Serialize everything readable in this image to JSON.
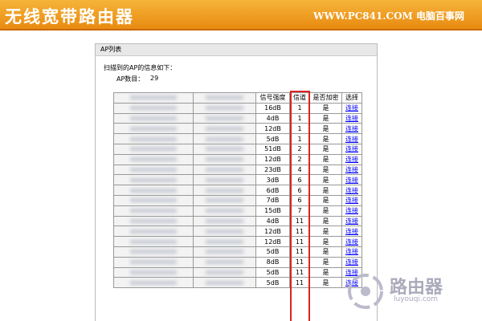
{
  "header": {
    "title": "无线宽带路由器",
    "site": "WWW.PC841.COM 电脑百事网"
  },
  "panel": {
    "title": "AP列表",
    "intro": "扫描到的AP的信息如下：",
    "count_label": "AP数目：",
    "count_value": "29"
  },
  "table": {
    "columns": [
      "信号强度",
      "信道",
      "是否加密",
      "选择"
    ],
    "rows": [
      [
        "16dB",
        "1",
        "是",
        "连接"
      ],
      [
        "4dB",
        "1",
        "是",
        "连接"
      ],
      [
        "12dB",
        "1",
        "是",
        "连接"
      ],
      [
        "5dB",
        "1",
        "是",
        "连接"
      ],
      [
        "51dB",
        "2",
        "是",
        "连接"
      ],
      [
        "12dB",
        "2",
        "是",
        "连接"
      ],
      [
        "23dB",
        "4",
        "是",
        "连接"
      ],
      [
        "3dB",
        "6",
        "是",
        "连接"
      ],
      [
        "6dB",
        "6",
        "是",
        "连接"
      ],
      [
        "7dB",
        "6",
        "是",
        "连接"
      ],
      [
        "15dB",
        "7",
        "是",
        "连接"
      ],
      [
        "4dB",
        "11",
        "是",
        "连接"
      ],
      [
        "12dB",
        "11",
        "是",
        "连接"
      ],
      [
        "12dB",
        "11",
        "是",
        "连接"
      ],
      [
        "5dB",
        "11",
        "是",
        "连接"
      ],
      [
        "8dB",
        "11",
        "是",
        "连接"
      ],
      [
        "5dB",
        "11",
        "是",
        "连接"
      ],
      [
        "5dB",
        "11",
        "是",
        "连接"
      ]
    ]
  },
  "watermark": {
    "name": "路由器",
    "url": "luyouqi.com"
  }
}
